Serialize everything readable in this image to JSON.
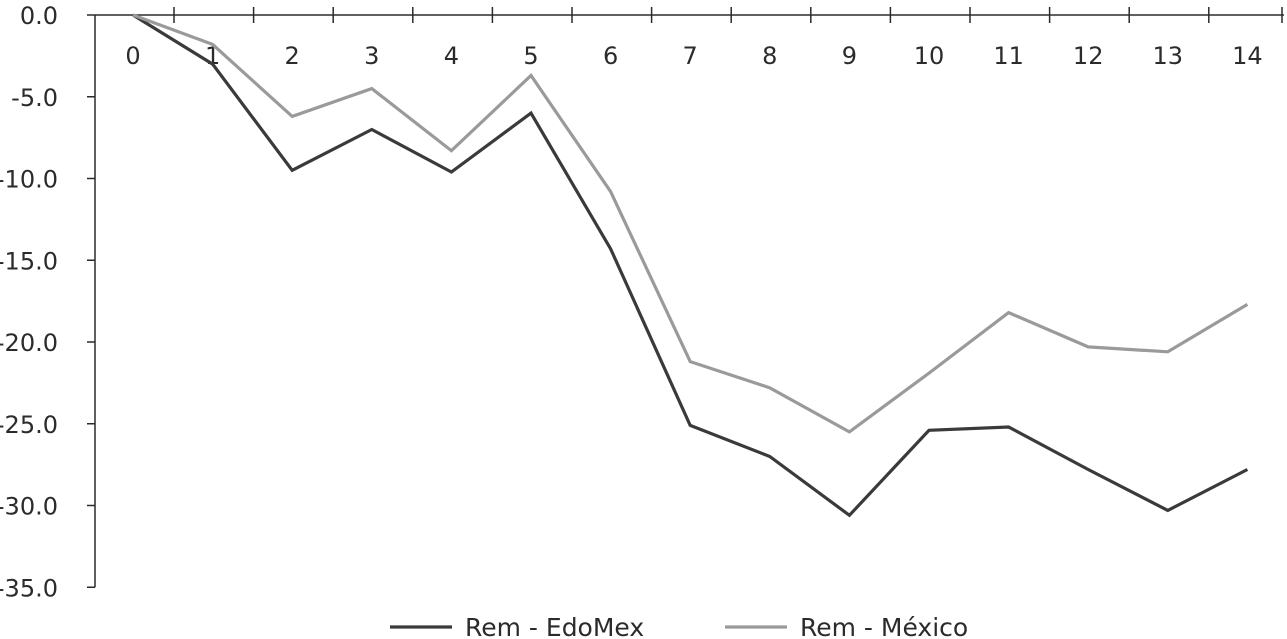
{
  "chart_data": {
    "type": "line",
    "title": "",
    "xlabel": "",
    "ylabel": "",
    "x": [
      0,
      1,
      2,
      3,
      4,
      5,
      6,
      7,
      8,
      9,
      10,
      11,
      12,
      13,
      14
    ],
    "x_tick_labels": [
      "0",
      "1",
      "2",
      "3",
      "4",
      "5",
      "6",
      "7",
      "8",
      "9",
      "10",
      "11",
      "12",
      "13",
      "14"
    ],
    "y_tick_labels": [
      "0.0",
      "-5.0",
      "-10.0",
      "-15.0",
      "-20.0",
      "-25.0",
      "-30.0",
      "-35.0"
    ],
    "ylim": [
      -35,
      0
    ],
    "grid": false,
    "x_axis_position": "top",
    "legend_position": "bottom-center",
    "series": [
      {
        "name": "Rem  - EdoMex",
        "color": "#3a3a3a",
        "values": [
          0,
          -3.0,
          -9.5,
          -7.0,
          -9.6,
          -6.0,
          -14.3,
          -25.1,
          -27.0,
          -30.6,
          -25.4,
          -25.2,
          -27.8,
          -30.3,
          -27.8
        ]
      },
      {
        "name": "Rem  - México",
        "color": "#9a9a9a",
        "values": [
          0,
          -1.8,
          -6.2,
          -4.5,
          -8.3,
          -3.7,
          -10.8,
          -21.2,
          -22.8,
          -25.5,
          -21.9,
          -18.2,
          -20.3,
          -20.6,
          -17.7
        ]
      }
    ]
  }
}
